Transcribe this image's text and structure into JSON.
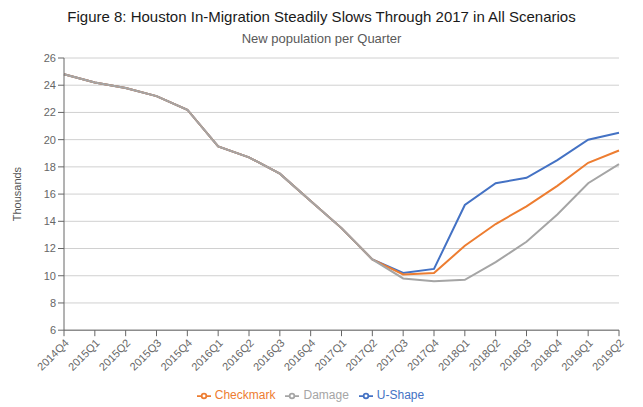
{
  "chart_data": {
    "type": "line",
    "title": "Figure 8: Houston In-Migration Steadily Slows Through 2017 in All Scenarios",
    "subtitle": "New population per Quarter",
    "y_label": "Thousands",
    "categories": [
      "2014Q4",
      "2015Q1",
      "2015Q2",
      "2015Q3",
      "2015Q4",
      "2016Q1",
      "2016Q2",
      "2016Q3",
      "2016Q4",
      "2017Q1",
      "2017Q2",
      "2017Q3",
      "2017Q4",
      "2018Q1",
      "2018Q2",
      "2018Q3",
      "2018Q4",
      "2019Q1",
      "2019Q2"
    ],
    "series": [
      {
        "name": "U-Shape",
        "color": "#4472C4",
        "values": [
          24.8,
          24.2,
          23.8,
          23.2,
          22.2,
          19.5,
          18.7,
          17.5,
          15.5,
          13.5,
          11.2,
          10.2,
          10.5,
          15.2,
          16.8,
          17.2,
          18.5,
          20.0,
          20.5
        ]
      },
      {
        "name": "Checkmark",
        "color": "#ED7D31",
        "values": [
          24.8,
          24.2,
          23.8,
          23.2,
          22.2,
          19.5,
          18.7,
          17.5,
          15.5,
          13.5,
          11.2,
          10.1,
          10.2,
          12.2,
          13.8,
          15.1,
          16.6,
          18.3,
          19.2
        ]
      },
      {
        "name": "Damage",
        "color": "#A5A5A5",
        "values": [
          24.8,
          24.2,
          23.8,
          23.2,
          22.2,
          19.5,
          18.7,
          17.5,
          15.5,
          13.5,
          11.2,
          9.8,
          9.6,
          9.7,
          11.0,
          12.5,
          14.5,
          16.8,
          18.2
        ]
      }
    ],
    "ylim": [
      6,
      26
    ],
    "yticks": [
      6,
      8,
      10,
      12,
      14,
      16,
      18,
      20,
      22,
      24,
      26
    ],
    "grid": "y",
    "legend": "bottom"
  }
}
